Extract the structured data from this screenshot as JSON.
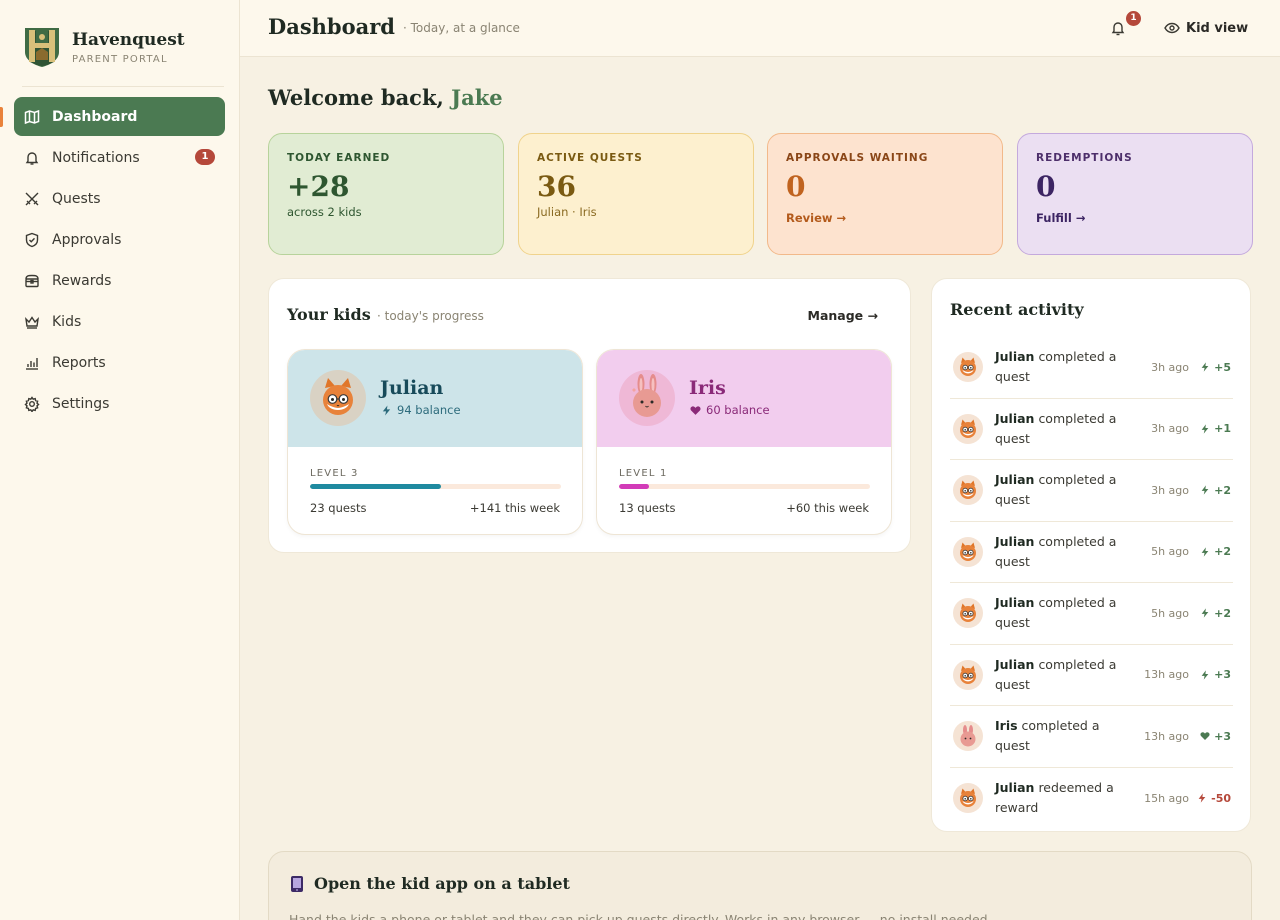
{
  "brand": {
    "name": "Havenquest",
    "subtitle": "PARENT PORTAL"
  },
  "sidebar": {
    "items": [
      {
        "label": "Dashboard",
        "icon": "map-icon",
        "active": true
      },
      {
        "label": "Notifications",
        "icon": "bell-icon",
        "badge": "1"
      },
      {
        "label": "Quests",
        "icon": "swords-icon"
      },
      {
        "label": "Approvals",
        "icon": "shield-check-icon"
      },
      {
        "label": "Rewards",
        "icon": "treasure-chest-icon"
      },
      {
        "label": "Kids",
        "icon": "crown-icon"
      },
      {
        "label": "Reports",
        "icon": "bar-chart-icon"
      },
      {
        "label": "Settings",
        "icon": "gear-icon"
      }
    ]
  },
  "header": {
    "title": "Dashboard",
    "subtitle": "· Today, at a glance",
    "notification_count": "1",
    "kid_view_label": "Kid view"
  },
  "welcome": {
    "prefix": "Welcome back,",
    "name": "Jake"
  },
  "stats": [
    {
      "label": "TODAY EARNED",
      "value": "+28",
      "sub": "across 2 kids"
    },
    {
      "label": "ACTIVE QUESTS",
      "value": "36",
      "sub": "Julian · Iris"
    },
    {
      "label": "APPROVALS WAITING",
      "value": "0",
      "link": "Review →"
    },
    {
      "label": "REDEMPTIONS",
      "value": "0",
      "link": "Fulfill →"
    }
  ],
  "kids_panel": {
    "title": "Your kids",
    "subtitle": "· today's progress",
    "manage_label": "Manage →",
    "kids": [
      {
        "name": "Julian",
        "balance": "94 balance",
        "level": "LEVEL 3",
        "progress": 0.52,
        "quests": "23 quests",
        "week": "+141 this week",
        "color": "#1f8aa0"
      },
      {
        "name": "Iris",
        "balance": "60 balance",
        "level": "LEVEL 1",
        "progress": 0.12,
        "quests": "13 quests",
        "week": "+60 this week",
        "color": "#d23bb8"
      }
    ]
  },
  "activity": {
    "title": "Recent activity",
    "items": [
      {
        "who": "Julian",
        "action": "completed a quest",
        "time": "3h ago",
        "points": "+5",
        "kind": "bolt"
      },
      {
        "who": "Julian",
        "action": "completed a quest",
        "time": "3h ago",
        "points": "+1",
        "kind": "bolt"
      },
      {
        "who": "Julian",
        "action": "completed a quest",
        "time": "3h ago",
        "points": "+2",
        "kind": "bolt"
      },
      {
        "who": "Julian",
        "action": "completed a quest",
        "time": "5h ago",
        "points": "+2",
        "kind": "bolt"
      },
      {
        "who": "Julian",
        "action": "completed a quest",
        "time": "5h ago",
        "points": "+2",
        "kind": "bolt"
      },
      {
        "who": "Julian",
        "action": "completed a quest",
        "time": "13h ago",
        "points": "+3",
        "kind": "bolt"
      },
      {
        "who": "Iris",
        "action": "completed a quest",
        "time": "13h ago",
        "points": "+3",
        "kind": "heart"
      },
      {
        "who": "Julian",
        "action": "redeemed a reward",
        "time": "15h ago",
        "points": "-50",
        "kind": "bolt-neg"
      }
    ]
  },
  "tablet": {
    "title": "Open the kid app on a tablet",
    "description": "Hand the kids a phone or tablet and they can pick up quests directly. Works in any browser — no install needed."
  },
  "colors": {
    "accent": "#4b7a52",
    "badge": "#b5483a",
    "julian": "#1f8aa0",
    "iris": "#d23bb8"
  }
}
